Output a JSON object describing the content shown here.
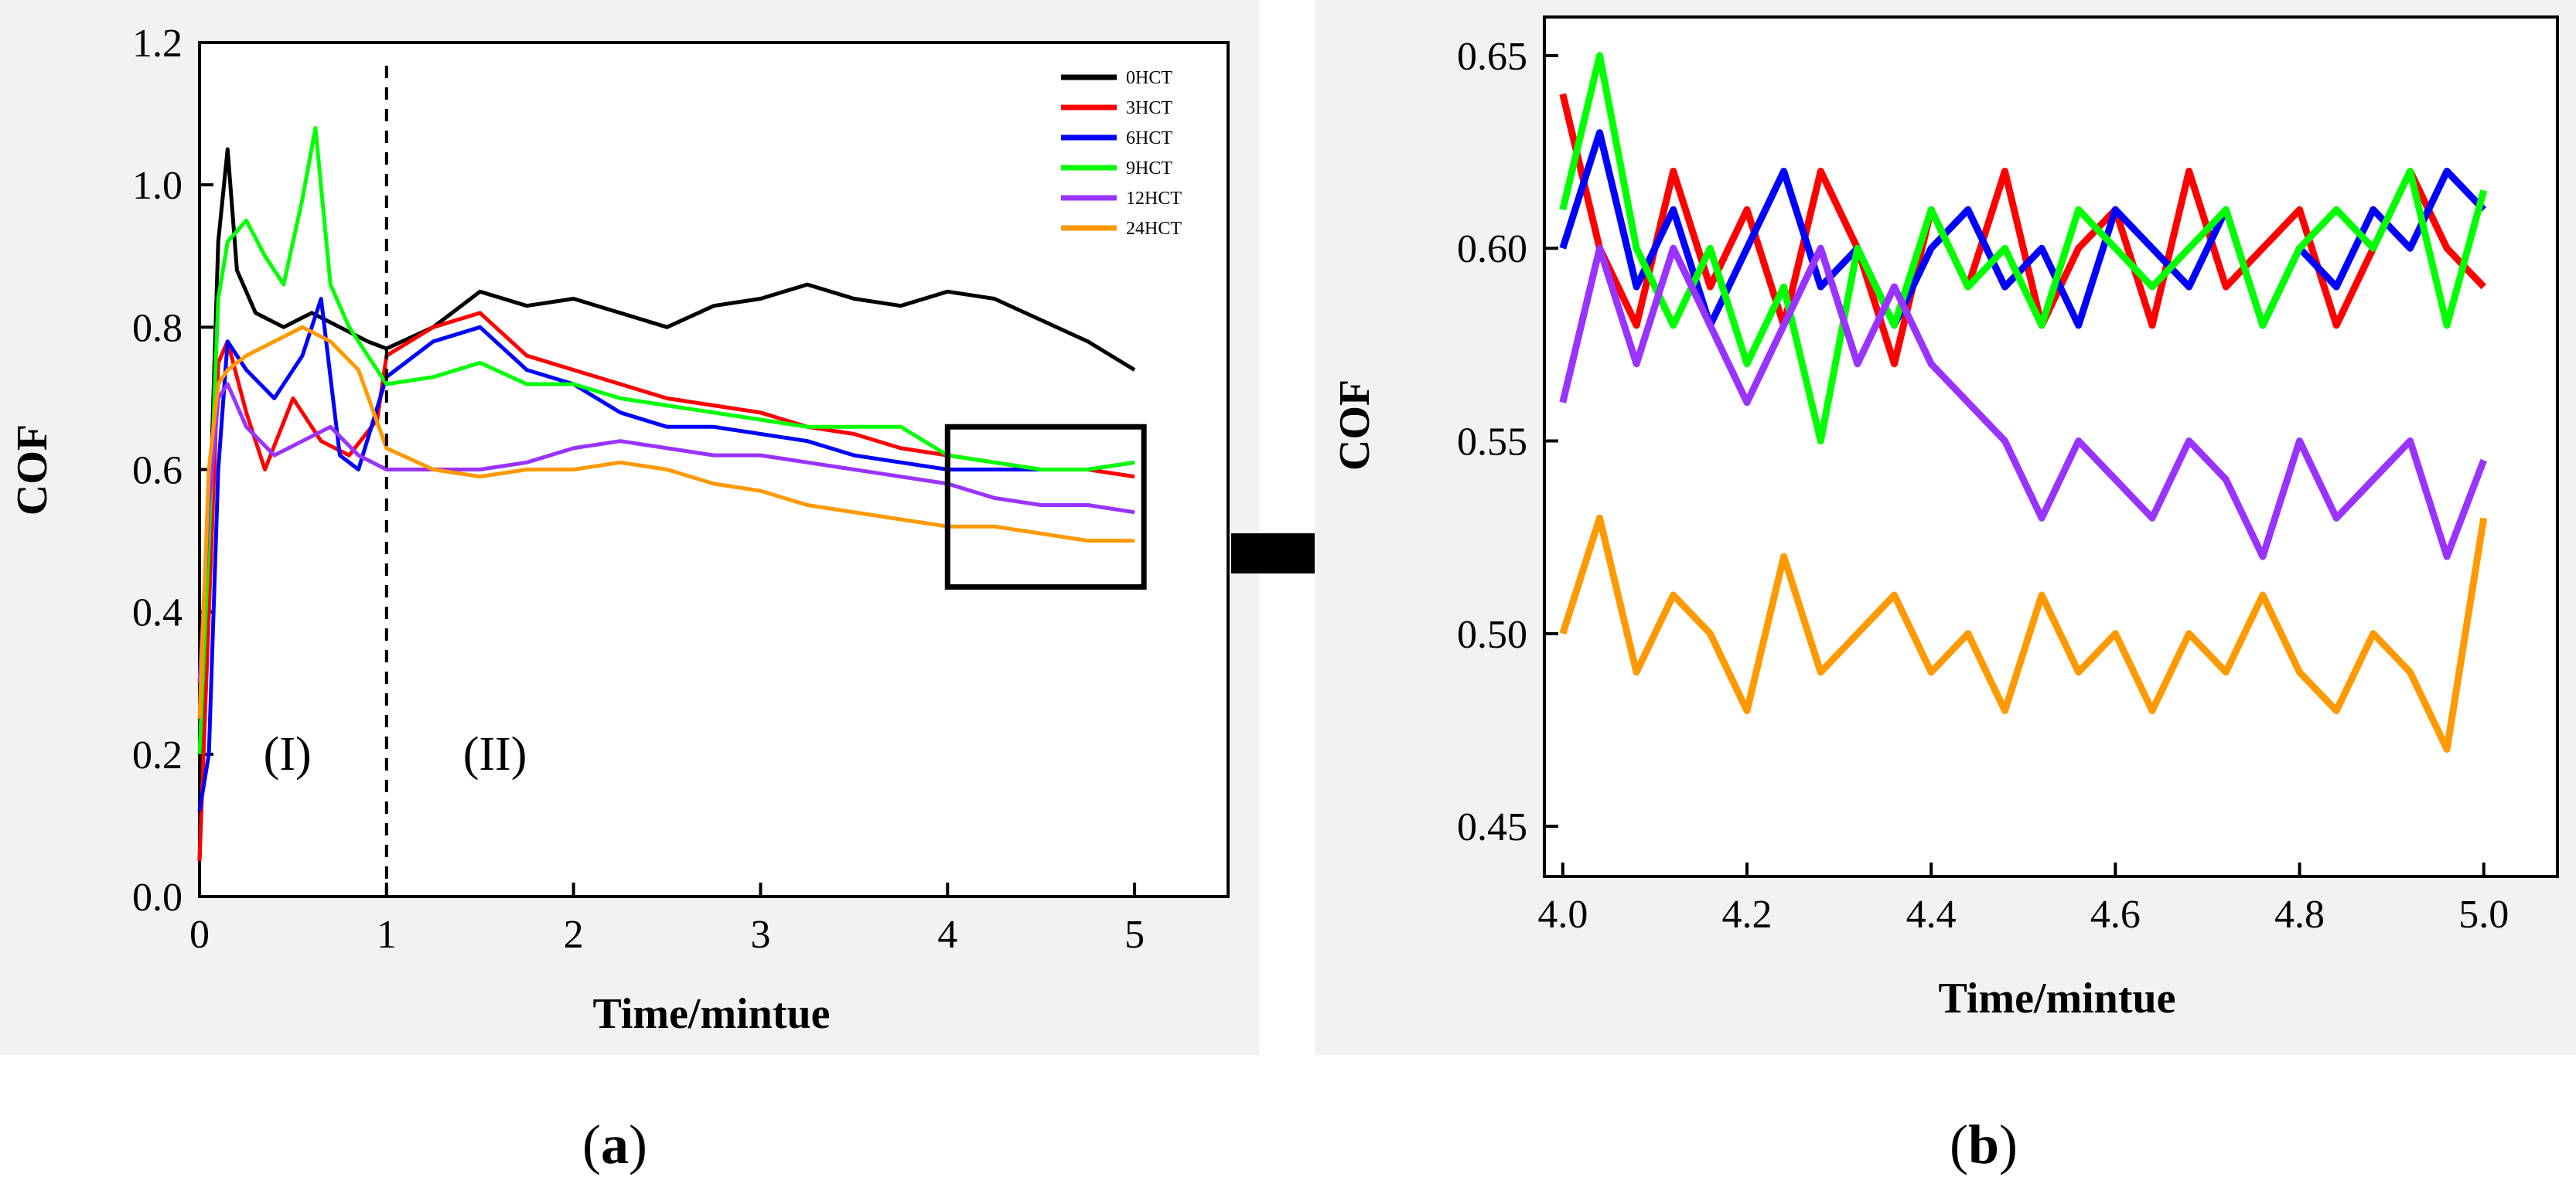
{
  "chart_data": [
    {
      "panel": "a",
      "type": "line",
      "title": "",
      "xlabel": "Time/mintue",
      "ylabel": "COF",
      "xlim": [
        0,
        5.5
      ],
      "ylim": [
        0,
        1.2
      ],
      "xticks": [
        "0",
        "1",
        "2",
        "3",
        "4",
        "5"
      ],
      "yticks": [
        "0.0",
        "0.2",
        "0.4",
        "0.6",
        "0.8",
        "1.0",
        "1.2"
      ],
      "legend_position": "top-right",
      "annotations": {
        "divider_x": 1.0,
        "region_1": "(I)",
        "region_2": "(II)",
        "region_label_y": 0.2,
        "zoom_box": {
          "x": [
            4.0,
            5.05
          ],
          "y": [
            0.435,
            0.66
          ]
        }
      },
      "series": [
        {
          "name": "0HCT",
          "color": "#000000",
          "x": [
            0,
            0.05,
            0.1,
            0.15,
            0.2,
            0.3,
            0.45,
            0.6,
            0.75,
            0.9,
            1.0,
            1.25,
            1.5,
            1.75,
            2.0,
            2.25,
            2.5,
            2.75,
            3.0,
            3.25,
            3.5,
            3.75,
            4.0,
            4.25,
            4.5,
            4.75,
            5.0
          ],
          "y": [
            0.05,
            0.5,
            0.92,
            1.05,
            0.88,
            0.82,
            0.8,
            0.82,
            0.8,
            0.78,
            0.77,
            0.8,
            0.85,
            0.83,
            0.84,
            0.82,
            0.8,
            0.83,
            0.84,
            0.86,
            0.84,
            0.83,
            0.85,
            0.84,
            0.81,
            0.78,
            0.74
          ]
        },
        {
          "name": "3HCT",
          "color": "#ff0000",
          "x": [
            0,
            0.05,
            0.1,
            0.15,
            0.25,
            0.35,
            0.5,
            0.65,
            0.8,
            0.95,
            1.0,
            1.25,
            1.5,
            1.75,
            2.0,
            2.25,
            2.5,
            2.75,
            3.0,
            3.25,
            3.5,
            3.75,
            4.0,
            4.25,
            4.5,
            4.75,
            5.0
          ],
          "y": [
            0.05,
            0.4,
            0.75,
            0.78,
            0.68,
            0.6,
            0.7,
            0.64,
            0.62,
            0.67,
            0.76,
            0.8,
            0.82,
            0.76,
            0.74,
            0.72,
            0.7,
            0.69,
            0.68,
            0.66,
            0.65,
            0.63,
            0.62,
            0.61,
            0.6,
            0.6,
            0.59
          ]
        },
        {
          "name": "6HCT",
          "color": "#0000ff",
          "x": [
            0,
            0.05,
            0.1,
            0.15,
            0.25,
            0.4,
            0.55,
            0.65,
            0.75,
            0.85,
            1.0,
            1.25,
            1.5,
            1.75,
            2.0,
            2.25,
            2.5,
            2.75,
            3.0,
            3.25,
            3.5,
            3.75,
            4.0,
            4.25,
            4.5,
            4.75,
            5.0
          ],
          "y": [
            0.12,
            0.2,
            0.6,
            0.78,
            0.74,
            0.7,
            0.76,
            0.84,
            0.62,
            0.6,
            0.73,
            0.78,
            0.8,
            0.74,
            0.72,
            0.68,
            0.66,
            0.66,
            0.65,
            0.64,
            0.62,
            0.61,
            0.6,
            0.6,
            0.6,
            0.6,
            0.61
          ]
        },
        {
          "name": "9HCT",
          "color": "#00ff00",
          "x": [
            0,
            0.05,
            0.1,
            0.15,
            0.25,
            0.35,
            0.45,
            0.55,
            0.62,
            0.7,
            0.8,
            0.9,
            1.0,
            1.25,
            1.5,
            1.75,
            2.0,
            2.25,
            2.5,
            2.75,
            3.0,
            3.25,
            3.5,
            3.75,
            4.0,
            4.25,
            4.5,
            4.75,
            5.0
          ],
          "y": [
            0.2,
            0.5,
            0.84,
            0.92,
            0.95,
            0.9,
            0.86,
            0.98,
            1.08,
            0.86,
            0.8,
            0.76,
            0.72,
            0.73,
            0.75,
            0.72,
            0.72,
            0.7,
            0.69,
            0.68,
            0.67,
            0.66,
            0.66,
            0.66,
            0.62,
            0.61,
            0.6,
            0.6,
            0.61
          ]
        },
        {
          "name": "12HCT",
          "color": "#9933ff",
          "x": [
            0,
            0.05,
            0.1,
            0.15,
            0.25,
            0.4,
            0.55,
            0.7,
            0.85,
            1.0,
            1.25,
            1.5,
            1.75,
            2.0,
            2.25,
            2.5,
            2.75,
            3.0,
            3.25,
            3.5,
            3.75,
            4.0,
            4.25,
            4.5,
            4.75,
            5.0
          ],
          "y": [
            0.3,
            0.55,
            0.7,
            0.72,
            0.66,
            0.62,
            0.64,
            0.66,
            0.62,
            0.6,
            0.6,
            0.6,
            0.61,
            0.63,
            0.64,
            0.63,
            0.62,
            0.62,
            0.61,
            0.6,
            0.59,
            0.58,
            0.56,
            0.55,
            0.55,
            0.54
          ]
        },
        {
          "name": "24HCT",
          "color": "#ff9900",
          "x": [
            0,
            0.05,
            0.1,
            0.15,
            0.25,
            0.4,
            0.55,
            0.7,
            0.85,
            1.0,
            1.25,
            1.5,
            1.75,
            2.0,
            2.25,
            2.5,
            2.75,
            3.0,
            3.25,
            3.5,
            3.75,
            4.0,
            4.25,
            4.5,
            4.75,
            5.0
          ],
          "y": [
            0.25,
            0.6,
            0.72,
            0.74,
            0.76,
            0.78,
            0.8,
            0.78,
            0.74,
            0.63,
            0.6,
            0.59,
            0.6,
            0.6,
            0.61,
            0.6,
            0.58,
            0.57,
            0.55,
            0.54,
            0.53,
            0.52,
            0.52,
            0.51,
            0.5,
            0.5
          ]
        }
      ]
    },
    {
      "panel": "b",
      "type": "line",
      "title": "",
      "xlabel": "Time/mintue",
      "ylabel": "COF",
      "xlim": [
        3.98,
        5.08
      ],
      "ylim": [
        0.437,
        0.66
      ],
      "xticks": [
        "4.0",
        "4.2",
        "4.4",
        "4.6",
        "4.8",
        "5.0"
      ],
      "yticks": [
        "0.45",
        "0.50",
        "0.55",
        "0.60",
        "0.65"
      ],
      "series": [
        {
          "name": "3HCT",
          "color": "#ff0000",
          "x": [
            4.0,
            4.04,
            4.08,
            4.12,
            4.16,
            4.2,
            4.24,
            4.28,
            4.32,
            4.36,
            4.4,
            4.44,
            4.48,
            4.52,
            4.56,
            4.6,
            4.64,
            4.68,
            4.72,
            4.76,
            4.8,
            4.84,
            4.88,
            4.92,
            4.96,
            5.0
          ],
          "y": [
            0.64,
            0.6,
            0.58,
            0.62,
            0.59,
            0.61,
            0.58,
            0.62,
            0.6,
            0.57,
            0.61,
            0.59,
            0.62,
            0.58,
            0.6,
            0.61,
            0.58,
            0.62,
            0.59,
            0.6,
            0.61,
            0.58,
            0.6,
            0.62,
            0.6,
            0.59
          ]
        },
        {
          "name": "6HCT",
          "color": "#0000ff",
          "x": [
            4.0,
            4.04,
            4.08,
            4.12,
            4.16,
            4.2,
            4.24,
            4.28,
            4.32,
            4.36,
            4.4,
            4.44,
            4.48,
            4.52,
            4.56,
            4.6,
            4.64,
            4.68,
            4.72,
            4.76,
            4.8,
            4.84,
            4.88,
            4.92,
            4.96,
            5.0
          ],
          "y": [
            0.6,
            0.63,
            0.59,
            0.61,
            0.58,
            0.6,
            0.62,
            0.59,
            0.6,
            0.58,
            0.6,
            0.61,
            0.59,
            0.6,
            0.58,
            0.61,
            0.6,
            0.59,
            0.61,
            0.58,
            0.6,
            0.59,
            0.61,
            0.6,
            0.62,
            0.61
          ]
        },
        {
          "name": "9HCT",
          "color": "#00ff00",
          "x": [
            4.0,
            4.04,
            4.08,
            4.12,
            4.16,
            4.2,
            4.24,
            4.28,
            4.32,
            4.36,
            4.4,
            4.44,
            4.48,
            4.52,
            4.56,
            4.6,
            4.64,
            4.68,
            4.72,
            4.76,
            4.8,
            4.84,
            4.88,
            4.92,
            4.96,
            5.0
          ],
          "y": [
            0.61,
            0.65,
            0.6,
            0.58,
            0.6,
            0.57,
            0.59,
            0.55,
            0.6,
            0.58,
            0.61,
            0.59,
            0.6,
            0.58,
            0.61,
            0.6,
            0.59,
            0.6,
            0.61,
            0.58,
            0.6,
            0.61,
            0.6,
            0.62,
            0.58,
            0.615
          ]
        },
        {
          "name": "12HCT",
          "color": "#9933ff",
          "x": [
            4.0,
            4.04,
            4.08,
            4.12,
            4.16,
            4.2,
            4.24,
            4.28,
            4.32,
            4.36,
            4.4,
            4.44,
            4.48,
            4.52,
            4.56,
            4.6,
            4.64,
            4.68,
            4.72,
            4.76,
            4.8,
            4.84,
            4.88,
            4.92,
            4.96,
            5.0
          ],
          "y": [
            0.56,
            0.6,
            0.57,
            0.6,
            0.58,
            0.56,
            0.58,
            0.6,
            0.57,
            0.59,
            0.57,
            0.56,
            0.55,
            0.53,
            0.55,
            0.54,
            0.53,
            0.55,
            0.54,
            0.52,
            0.55,
            0.53,
            0.54,
            0.55,
            0.52,
            0.545
          ]
        },
        {
          "name": "24HCT",
          "color": "#ff9900",
          "x": [
            4.0,
            4.04,
            4.08,
            4.12,
            4.16,
            4.2,
            4.24,
            4.28,
            4.32,
            4.36,
            4.4,
            4.44,
            4.48,
            4.52,
            4.56,
            4.6,
            4.64,
            4.68,
            4.72,
            4.76,
            4.8,
            4.84,
            4.88,
            4.92,
            4.96,
            5.0
          ],
          "y": [
            0.5,
            0.53,
            0.49,
            0.51,
            0.5,
            0.48,
            0.52,
            0.49,
            0.5,
            0.51,
            0.49,
            0.5,
            0.48,
            0.51,
            0.49,
            0.5,
            0.48,
            0.5,
            0.49,
            0.51,
            0.49,
            0.48,
            0.5,
            0.49,
            0.47,
            0.53
          ]
        }
      ]
    }
  ],
  "captions": {
    "a_open": "(",
    "a_letter": "a",
    "a_close": ")",
    "b_open": "(",
    "b_letter": "b",
    "b_close": ")"
  },
  "arrow": {
    "color": "#000000"
  }
}
